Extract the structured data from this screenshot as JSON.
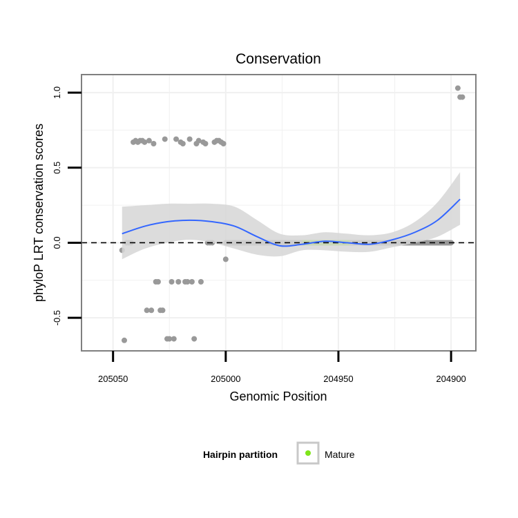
{
  "chart_data": {
    "type": "scatter",
    "title": "Conservation",
    "xlabel": "Genomic Position",
    "ylabel": "phyloP LRT conservation scores",
    "x_reversed": true,
    "xlim": [
      205064,
      204889
    ],
    "ylim": [
      -0.72,
      1.12
    ],
    "x_ticks": [
      205050,
      205000,
      204950,
      204900
    ],
    "y_ticks": [
      -0.5,
      0.0,
      0.5,
      1.0
    ],
    "y_tick_labels": [
      "-0.5",
      "0.0",
      "0.5",
      "1.0"
    ],
    "grid": true,
    "reference_line": {
      "y": 0,
      "style": "dashed",
      "color": "#000000"
    },
    "colors": {
      "points": "#999999",
      "mature_line": "#7fe51a",
      "smooth_line": "#3366ff",
      "ribbon": "#d6d6d6",
      "panel_border": "#7f7f7f",
      "grid": "#f0f0f0"
    },
    "points": [
      {
        "x": 205046,
        "y": -0.05
      },
      {
        "x": 205045,
        "y": -0.65
      },
      {
        "x": 205044,
        "y": 0.0
      },
      {
        "x": 205043,
        "y": 0.0
      },
      {
        "x": 205042,
        "y": 0.0
      },
      {
        "x": 205041,
        "y": 0.67
      },
      {
        "x": 205040,
        "y": 0.68
      },
      {
        "x": 205039,
        "y": 0.67
      },
      {
        "x": 205038,
        "y": 0.68
      },
      {
        "x": 205037,
        "y": 0.68
      },
      {
        "x": 205036,
        "y": 0.67
      },
      {
        "x": 205035,
        "y": -0.45
      },
      {
        "x": 205034,
        "y": 0.68
      },
      {
        "x": 205033,
        "y": -0.45
      },
      {
        "x": 205032,
        "y": 0.66
      },
      {
        "x": 205031,
        "y": -0.26
      },
      {
        "x": 205030,
        "y": -0.26
      },
      {
        "x": 205029,
        "y": -0.45
      },
      {
        "x": 205028,
        "y": -0.45
      },
      {
        "x": 205027,
        "y": 0.69
      },
      {
        "x": 205026,
        "y": -0.64
      },
      {
        "x": 205025,
        "y": -0.64
      },
      {
        "x": 205024,
        "y": -0.26
      },
      {
        "x": 205023,
        "y": -0.64
      },
      {
        "x": 205022,
        "y": 0.69
      },
      {
        "x": 205021,
        "y": -0.26
      },
      {
        "x": 205020,
        "y": 0.67
      },
      {
        "x": 205019,
        "y": 0.66
      },
      {
        "x": 205018,
        "y": -0.26
      },
      {
        "x": 205017,
        "y": -0.26
      },
      {
        "x": 205016,
        "y": 0.69
      },
      {
        "x": 205015,
        "y": -0.26
      },
      {
        "x": 205014,
        "y": -0.64
      },
      {
        "x": 205013,
        "y": 0.66
      },
      {
        "x": 205012,
        "y": 0.68
      },
      {
        "x": 205011,
        "y": -0.26
      },
      {
        "x": 205010,
        "y": 0.67
      },
      {
        "x": 205009,
        "y": 0.66
      },
      {
        "x": 205008,
        "y": 0.0
      },
      {
        "x": 205007,
        "y": 0.0
      },
      {
        "x": 205006,
        "y": 0.0
      },
      {
        "x": 205005,
        "y": 0.67
      },
      {
        "x": 205004,
        "y": 0.68
      },
      {
        "x": 205003,
        "y": 0.68
      },
      {
        "x": 205002,
        "y": 0.67
      },
      {
        "x": 205001,
        "y": 0.66
      },
      {
        "x": 205000,
        "y": -0.11
      },
      {
        "x": 204897,
        "y": 1.03
      },
      {
        "x": 204896,
        "y": 0.97
      },
      {
        "x": 204895,
        "y": 0.97
      }
    ],
    "zero_run": {
      "from": 205000,
      "to": 204900,
      "y": 0.0
    },
    "mature_segment": {
      "from": 204966,
      "to": 204945,
      "y": 0.0,
      "label": "Mature"
    },
    "smooth": {
      "x": [
        205046,
        205036,
        205026,
        205016,
        205006,
        204996,
        204986,
        204976,
        204966,
        204956,
        204946,
        204936,
        204926,
        204916,
        204906,
        204896
      ],
      "y": [
        0.06,
        0.11,
        0.14,
        0.15,
        0.14,
        0.11,
        0.04,
        -0.02,
        -0.01,
        0.01,
        0.0,
        -0.01,
        0.02,
        0.07,
        0.15,
        0.29
      ],
      "lower": [
        -0.11,
        -0.04,
        0.0,
        0.02,
        0.0,
        -0.04,
        -0.08,
        -0.09,
        -0.05,
        -0.05,
        -0.06,
        -0.06,
        -0.03,
        0.0,
        0.04,
        0.12
      ],
      "upper": [
        0.24,
        0.25,
        0.26,
        0.26,
        0.26,
        0.24,
        0.15,
        0.06,
        0.05,
        0.07,
        0.06,
        0.05,
        0.07,
        0.14,
        0.27,
        0.47
      ]
    },
    "legend": {
      "title": "Hairpin partition",
      "position": "bottom",
      "entries": [
        "Mature"
      ]
    }
  }
}
